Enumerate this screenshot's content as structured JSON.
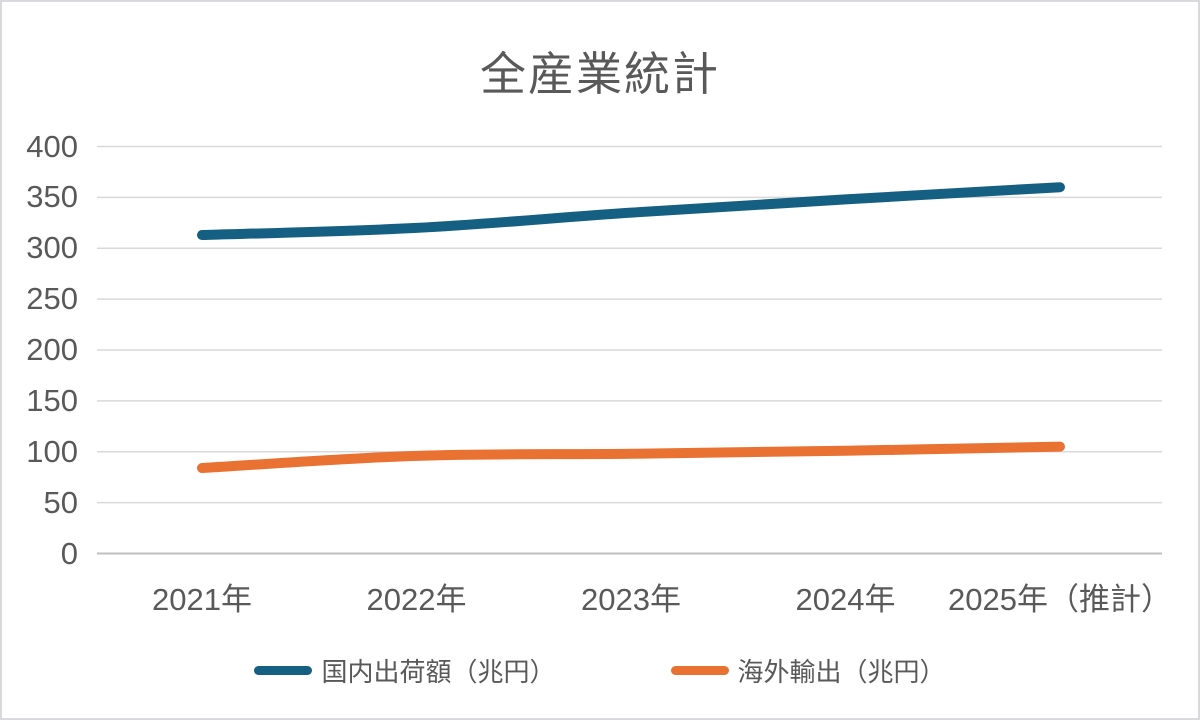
{
  "chart_data": {
    "type": "line",
    "title": "全産業統計",
    "categories": [
      "2021年",
      "2022年",
      "2023年",
      "2024年",
      "2025年（推計）"
    ],
    "series": [
      {
        "name": "国内出荷額（兆円）",
        "values": [
          313,
          320,
          335,
          348,
          360
        ],
        "color": "#156082"
      },
      {
        "name": "海外輸出（兆円）",
        "values": [
          84,
          96,
          98,
          101,
          105
        ],
        "color": "#E97132"
      }
    ],
    "xlabel": "",
    "ylabel": "",
    "ylim": [
      0,
      400
    ],
    "ytick_step": 50,
    "yticks": [
      "0",
      "50",
      "100",
      "150",
      "200",
      "250",
      "300",
      "350",
      "400"
    ],
    "grid": true,
    "smoothed": true,
    "legend_position": "bottom"
  },
  "style": {
    "text_color": "#595959",
    "gridline_color": "#D9D9D9",
    "axisline_color": "#BFBFBF",
    "background": "#FFFFFF",
    "border_color": "#D9D9DE"
  }
}
